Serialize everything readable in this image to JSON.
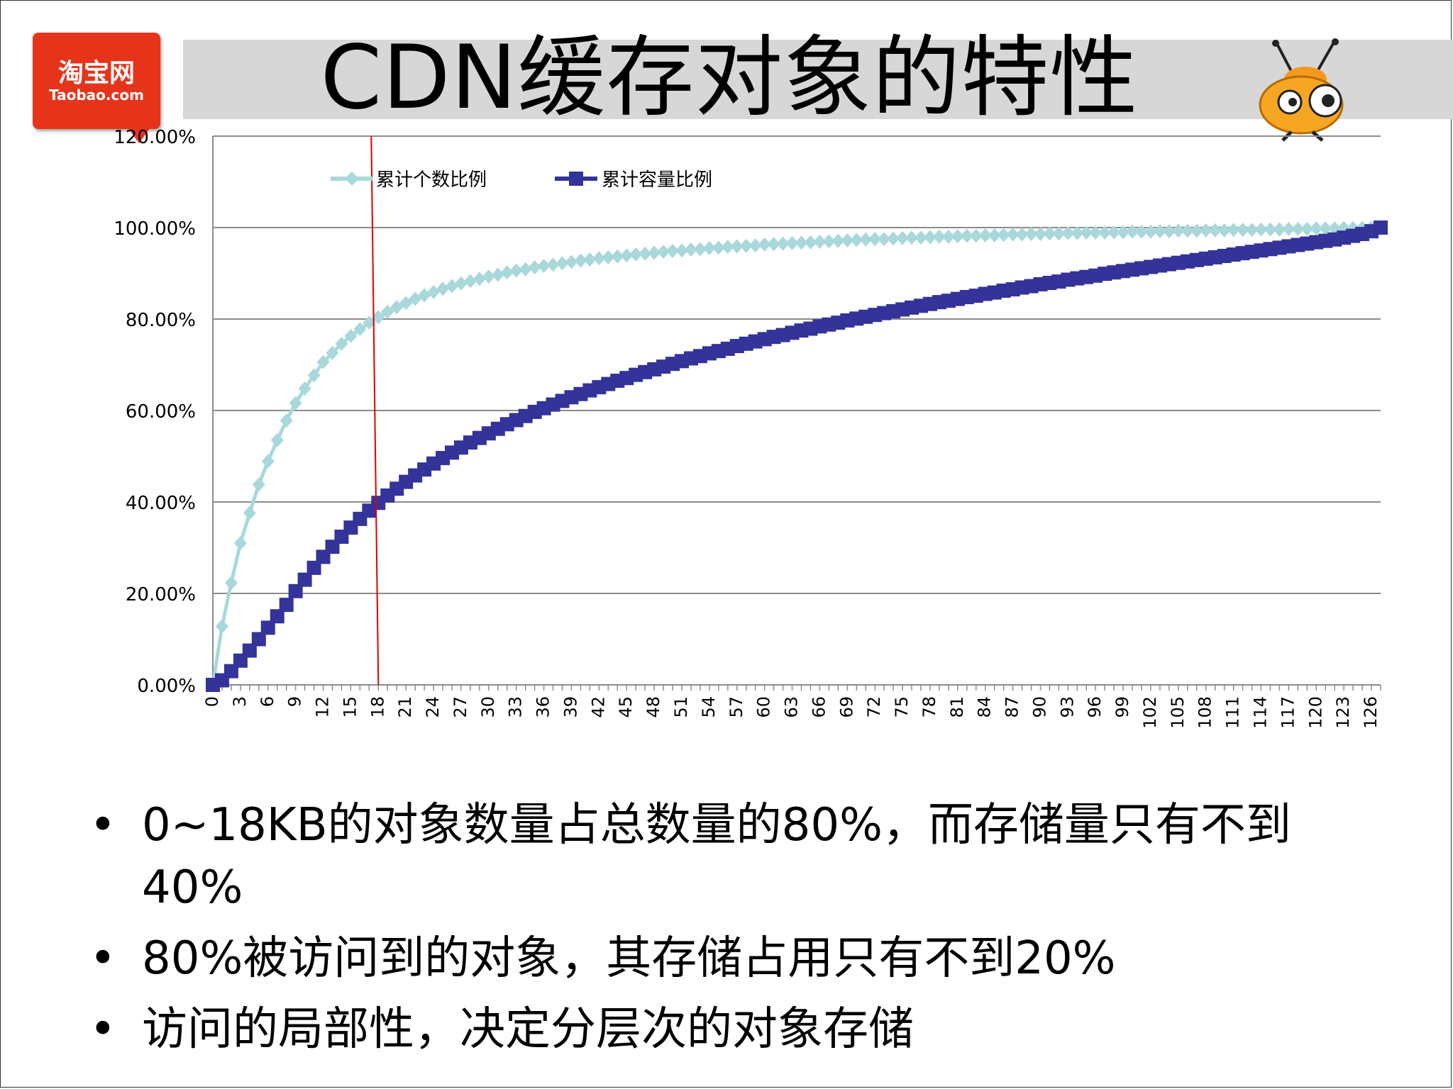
{
  "slide": {
    "title": "CDN缓存对象的特性",
    "logo_cn": "淘宝网",
    "logo_en": "Taobao.com"
  },
  "bullets": [
    "0~18KB的对象数量占总数量的80%，而存储量只有不到40%",
    "80%被访问到的对象，其存储占用只有不到20%",
    "访问的局部性，决定分层次的对象存储"
  ],
  "colors": {
    "series1": "#a9d8dc",
    "series2": "#333399",
    "marker_line": "#e00000",
    "logo": "#e6341b"
  },
  "chart_data": {
    "type": "line",
    "x": [
      0,
      1,
      2,
      3,
      4,
      5,
      6,
      7,
      8,
      9,
      10,
      11,
      12,
      13,
      14,
      15,
      16,
      17,
      18,
      19,
      20,
      21,
      22,
      23,
      24,
      25,
      26,
      27,
      28,
      29,
      30,
      31,
      32,
      33,
      34,
      35,
      36,
      37,
      38,
      39,
      40,
      41,
      42,
      43,
      44,
      45,
      46,
      47,
      48,
      49,
      50,
      51,
      52,
      53,
      54,
      55,
      56,
      57,
      58,
      59,
      60,
      61,
      62,
      63,
      64,
      65,
      66,
      67,
      68,
      69,
      70,
      71,
      72,
      73,
      74,
      75,
      76,
      77,
      78,
      79,
      80,
      81,
      82,
      83,
      84,
      85,
      86,
      87,
      88,
      89,
      90,
      91,
      92,
      93,
      94,
      95,
      96,
      97,
      98,
      99,
      100,
      101,
      102,
      103,
      104,
      105,
      106,
      107,
      108,
      109,
      110,
      111,
      112,
      113,
      114,
      115,
      116,
      117,
      118,
      119,
      120,
      121,
      122,
      123,
      124,
      125,
      126,
      127
    ],
    "x_tick_labels": [
      "0",
      "3",
      "6",
      "9",
      "12",
      "15",
      "18",
      "21",
      "24",
      "27",
      "30",
      "33",
      "36",
      "39",
      "42",
      "45",
      "48",
      "51",
      "54",
      "57",
      "60",
      "63",
      "66",
      "69",
      "72",
      "75",
      "78",
      "81",
      "84",
      "87",
      "90",
      "93",
      "96",
      "99",
      "102",
      "105",
      "108",
      "111",
      "114",
      "117",
      "120",
      "123",
      "126"
    ],
    "y_tick_labels": [
      "0.00%",
      "20.00%",
      "40.00%",
      "60.00%",
      "80.00%",
      "100.00%",
      "120.00%"
    ],
    "ylim": [
      0,
      120
    ],
    "xlim": [
      0,
      127
    ],
    "grid": true,
    "legend_position": "top-left",
    "vertical_reference_x": 18,
    "series": [
      {
        "name": "累计个数比例",
        "marker": "diamond",
        "values": [
          0,
          12.8,
          22.3,
          31.0,
          37.6,
          43.8,
          48.9,
          53.5,
          57.8,
          61.6,
          64.8,
          67.7,
          70.6,
          72.6,
          74.6,
          76.3,
          77.8,
          79.2,
          80.4,
          81.6,
          82.6,
          83.5,
          84.4,
          85.2,
          85.9,
          86.6,
          87.2,
          87.8,
          88.3,
          88.8,
          89.3,
          89.7,
          90.2,
          90.6,
          90.9,
          91.3,
          91.6,
          91.9,
          92.2,
          92.5,
          92.8,
          93.0,
          93.3,
          93.5,
          93.7,
          93.9,
          94.1,
          94.3,
          94.5,
          94.7,
          94.9,
          95.0,
          95.2,
          95.3,
          95.5,
          95.6,
          95.8,
          95.9,
          96.0,
          96.1,
          96.3,
          96.4,
          96.5,
          96.6,
          96.7,
          96.8,
          96.9,
          97.0,
          97.1,
          97.2,
          97.3,
          97.4,
          97.5,
          97.5,
          97.6,
          97.7,
          97.8,
          97.8,
          97.9,
          98.0,
          98.0,
          98.1,
          98.2,
          98.2,
          98.3,
          98.3,
          98.4,
          98.5,
          98.5,
          98.6,
          98.6,
          98.7,
          98.7,
          98.8,
          98.8,
          98.9,
          98.9,
          98.9,
          99.0,
          99.0,
          99.1,
          99.1,
          99.1,
          99.2,
          99.2,
          99.3,
          99.3,
          99.3,
          99.4,
          99.4,
          99.4,
          99.5,
          99.5,
          99.5,
          99.6,
          99.6,
          99.6,
          99.7,
          99.7,
          99.7,
          99.8,
          99.8,
          99.8,
          99.9,
          99.9,
          99.9,
          100.0,
          100.0
        ]
      },
      {
        "name": "累计容量比例",
        "marker": "square",
        "values": [
          0,
          1.0,
          3.0,
          5.3,
          7.5,
          10.0,
          12.5,
          15.0,
          17.5,
          20.5,
          23.0,
          25.6,
          28.0,
          30.2,
          32.4,
          34.4,
          36.3,
          38.1,
          39.8,
          41.4,
          42.9,
          44.4,
          45.8,
          47.1,
          48.4,
          49.6,
          50.8,
          51.9,
          53.0,
          54.0,
          55.0,
          56.0,
          57.0,
          57.9,
          58.8,
          59.7,
          60.5,
          61.3,
          62.1,
          62.9,
          63.6,
          64.4,
          65.1,
          65.8,
          66.5,
          67.1,
          67.8,
          68.4,
          69.0,
          69.6,
          70.2,
          70.8,
          71.4,
          71.9,
          72.5,
          73.0,
          73.5,
          74.1,
          74.6,
          75.1,
          75.6,
          76.1,
          76.5,
          77.0,
          77.5,
          77.9,
          78.4,
          78.8,
          79.2,
          79.7,
          80.1,
          80.5,
          80.9,
          81.3,
          81.7,
          82.1,
          82.5,
          82.9,
          83.3,
          83.7,
          84.0,
          84.4,
          84.8,
          85.1,
          85.5,
          85.8,
          86.2,
          86.5,
          86.9,
          87.2,
          87.6,
          87.9,
          88.2,
          88.6,
          88.9,
          89.2,
          89.5,
          89.9,
          90.2,
          90.5,
          90.8,
          91.1,
          91.4,
          91.7,
          92.0,
          92.3,
          92.6,
          92.9,
          93.2,
          93.5,
          93.8,
          94.1,
          94.4,
          94.7,
          95.0,
          95.3,
          95.6,
          95.9,
          96.2,
          96.5,
          96.8,
          97.1,
          97.4,
          97.8,
          98.2,
          98.6,
          99.2,
          100.0
        ]
      }
    ]
  }
}
